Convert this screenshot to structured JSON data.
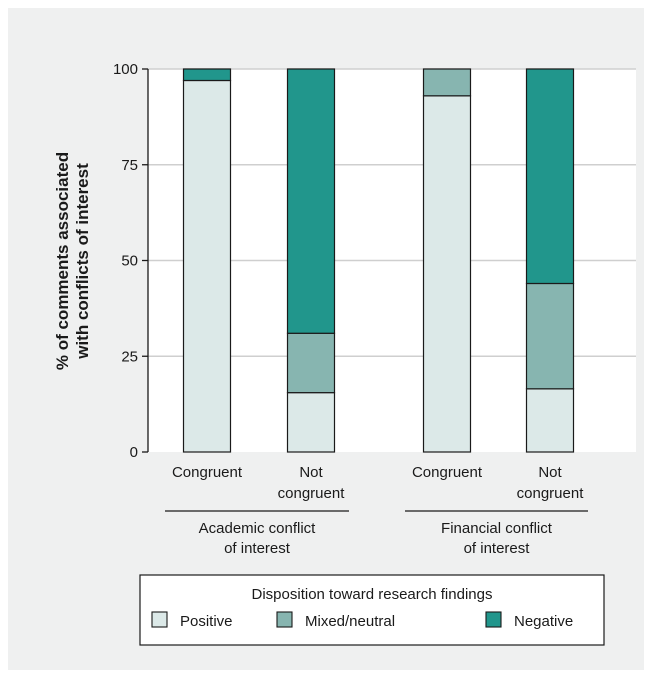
{
  "chart_data": {
    "type": "bar",
    "stacked": true,
    "ylabel": [
      "% of comments associated",
      "with conflicts of interest"
    ],
    "ylim": [
      0,
      100
    ],
    "yticks": [
      0,
      25,
      50,
      75,
      100
    ],
    "grid": true,
    "categories": [
      [
        "Congruent"
      ],
      [
        "Not",
        "congruent"
      ],
      [
        "Congruent"
      ],
      [
        "Not",
        "congruent"
      ]
    ],
    "groups": [
      {
        "label": [
          "Academic conflict",
          "of interest"
        ],
        "members": [
          0,
          1
        ]
      },
      {
        "label": [
          "Financial conflict",
          "of interest"
        ],
        "members": [
          2,
          3
        ]
      }
    ],
    "series": [
      {
        "name": "Positive",
        "color": "#dce9e8",
        "values": [
          97,
          15.5,
          93,
          16.5
        ]
      },
      {
        "name": "Mixed/neutral",
        "color": "#87b5b0",
        "values": [
          0,
          15.5,
          7,
          27.5
        ]
      },
      {
        "name": "Negative",
        "color": "#21968c",
        "values": [
          3,
          69,
          0,
          56
        ]
      }
    ],
    "legend": {
      "title": "Disposition toward research findings",
      "position": "bottom"
    }
  }
}
